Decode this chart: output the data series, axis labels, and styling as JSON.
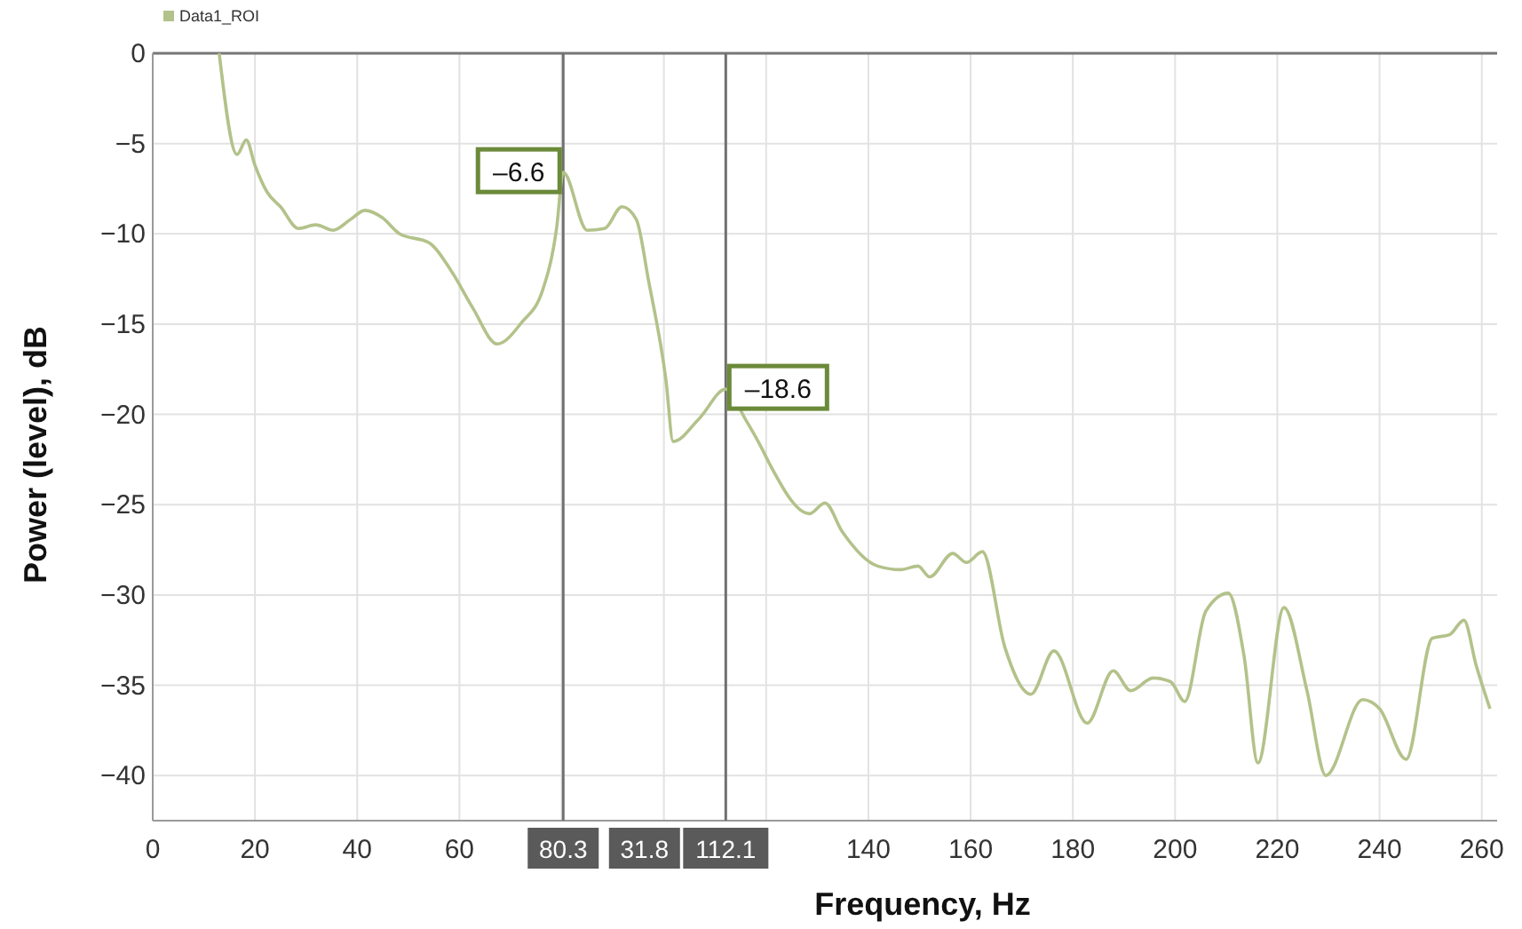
{
  "chart_data": {
    "type": "line",
    "xlabel": "Frequency, Hz",
    "ylabel": "Power (level), dB",
    "xlim": [
      0,
      263
    ],
    "ylim": [
      -42.5,
      0
    ],
    "xticks": [
      0,
      20,
      40,
      60,
      {
        "value": 80,
        "label": null
      },
      {
        "value": 100,
        "label": null
      },
      {
        "value": 120,
        "label": null
      },
      140,
      160,
      180,
      200,
      220,
      240,
      260
    ],
    "yticks": [
      0,
      -5,
      -10,
      -15,
      -20,
      -25,
      -30,
      -35,
      -40
    ],
    "grid": true,
    "legend": "top left",
    "marker": "none",
    "line_style": "solid",
    "series": [
      {
        "name": "Data1_ROI",
        "color": "#b3c28a",
        "x": [
          13,
          16.5,
          18.3,
          20,
          22.4,
          25,
          28.5,
          31.9,
          35.3,
          38.7,
          41.5,
          44.9,
          48.3,
          54.1,
          58.5,
          62.6,
          67.4,
          72.2,
          76.3,
          79,
          80.3,
          85,
          88.4,
          91.8,
          94.6,
          97,
          100.4,
          101.8,
          107,
          112.1,
          116,
          119,
          120.6,
          128.5,
          131.5,
          134.9,
          141.8,
          146.3,
          149.7,
          152,
          156.5,
          159.2,
          162.3,
          166.7,
          171.8,
          176.3,
          182.8,
          187.9,
          191.3,
          195.7,
          199.1,
          201.9,
          206,
          210.4,
          213.5,
          216.2,
          221.3,
          225.8,
          229.5,
          236.7,
          240,
          245.2,
          250.3,
          253.7,
          256.5,
          258.9,
          261.6
        ],
        "values": [
          0,
          -5.6,
          -4.8,
          -6.2,
          -7.7,
          -8.5,
          -9.7,
          -9.5,
          -9.8,
          -9.2,
          -8.7,
          -9.1,
          -10,
          -10.5,
          -12.1,
          -14.1,
          -16.1,
          -14.9,
          -13.1,
          -9.7,
          -6.6,
          -9.8,
          -9.7,
          -8.5,
          -9.2,
          -12.6,
          -18.1,
          -21.5,
          -20.2,
          -18.6,
          -20.3,
          -21.8,
          -22.7,
          -25.5,
          -24.9,
          -26.5,
          -28.4,
          -28.6,
          -28.4,
          -29,
          -27.7,
          -28.2,
          -27.6,
          -32.9,
          -35.5,
          -33.1,
          -37.1,
          -34.2,
          -35.3,
          -34.6,
          -34.8,
          -35.9,
          -30.9,
          -29.9,
          -33.4,
          -39.3,
          -30.7,
          -35.3,
          -40,
          -35.8,
          -36.3,
          -39.1,
          -32.4,
          -32.2,
          -31.4,
          -33.9,
          -36.3
        ]
      }
    ],
    "ref_lines": [
      {
        "axis": "x",
        "value": 80.3,
        "label": "80.3",
        "color": "#707070"
      },
      {
        "axis": "x",
        "value": 112.1,
        "label": "112.1",
        "color": "#707070"
      }
    ],
    "annotations": [
      {
        "text": "–6.6",
        "x": 80.3,
        "y": -6.6
      },
      {
        "text": "–18.6",
        "x": 112.1,
        "y": -18.6
      },
      "31.8"
    ]
  }
}
